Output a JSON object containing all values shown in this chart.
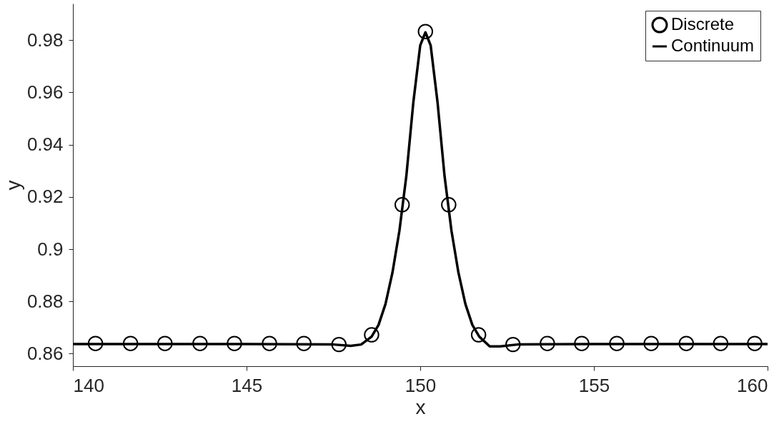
{
  "chart_data": {
    "type": "scatter",
    "xlabel": "x",
    "ylabel": "y",
    "xlim": [
      140,
      160
    ],
    "ylim": [
      0.8552,
      0.994
    ],
    "xticks": [
      140,
      145,
      150,
      155,
      160
    ],
    "yticks": [
      0.86,
      0.88,
      0.9,
      0.92,
      0.94,
      0.96,
      0.98
    ],
    "grid": false,
    "legend": "top right",
    "series": [
      {
        "name": "Discrete",
        "marker": "circle",
        "color": "#000000",
        "x": [
          140.65,
          141.66,
          142.65,
          143.66,
          144.65,
          145.66,
          146.65,
          147.66,
          148.6,
          149.48,
          150.15,
          150.82,
          151.68,
          152.67,
          153.66,
          154.65,
          155.66,
          156.65,
          157.66,
          158.65,
          159.63
        ],
        "values": [
          0.8639,
          0.8639,
          0.8639,
          0.8639,
          0.8639,
          0.8639,
          0.8639,
          0.8635,
          0.8672,
          0.917,
          0.9833,
          0.917,
          0.8672,
          0.8635,
          0.8639,
          0.8639,
          0.8639,
          0.8639,
          0.8639,
          0.8639,
          0.8639
        ]
      },
      {
        "name": "Continuum",
        "type": "line",
        "color": "#000000",
        "line_style": "solid",
        "x": [
          140,
          145,
          147.5,
          148.0,
          148.3,
          148.6,
          148.8,
          149.0,
          149.2,
          149.4,
          149.6,
          149.8,
          150.0,
          150.15,
          150.3,
          150.5,
          150.7,
          150.9,
          151.1,
          151.3,
          151.5,
          151.7,
          152.0,
          152.3,
          152.8,
          155,
          160
        ],
        "values": [
          0.8637,
          0.8637,
          0.8635,
          0.863,
          0.8635,
          0.8665,
          0.871,
          0.879,
          0.891,
          0.907,
          0.928,
          0.956,
          0.978,
          0.983,
          0.978,
          0.956,
          0.928,
          0.907,
          0.891,
          0.879,
          0.871,
          0.8665,
          0.8628,
          0.8628,
          0.8635,
          0.8637,
          0.8637
        ]
      }
    ]
  }
}
